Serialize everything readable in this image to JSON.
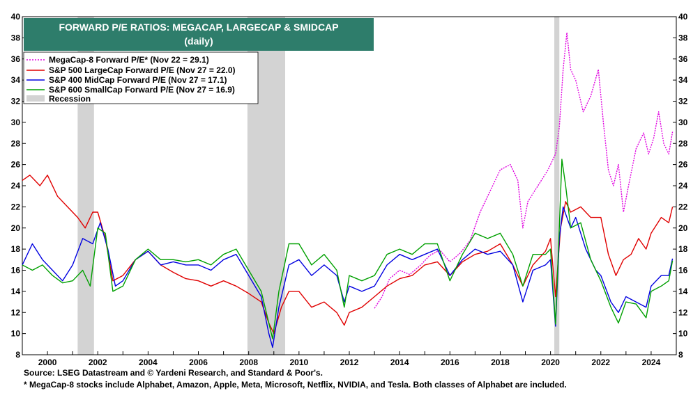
{
  "chart_data": {
    "type": "line",
    "title": "FORWARD P/E RATIOS: MEGACAP, LARGECAP & SMIDCAP",
    "subtitle": "(daily)",
    "xlabel": "",
    "ylabel": "",
    "xlim": [
      1999.0,
      2025.0
    ],
    "ylim": [
      8,
      40
    ],
    "y_ticks": [
      8,
      10,
      12,
      14,
      16,
      18,
      20,
      22,
      24,
      26,
      28,
      30,
      32,
      34,
      36,
      38,
      40
    ],
    "x_ticks": [
      2000,
      2002,
      2004,
      2006,
      2008,
      2010,
      2012,
      2014,
      2016,
      2018,
      2020,
      2022,
      2024
    ],
    "grid": false,
    "legend_placement": "top-left",
    "recessions": [
      [
        2001.2,
        2001.85
      ],
      [
        2007.95,
        2009.45
      ],
      [
        2020.15,
        2020.35
      ]
    ],
    "series": [
      {
        "name": "MegaCap-8 Forward P/E* (Nov 22 = 29.1)",
        "color": "#e000e0",
        "style": "dotted",
        "points": [
          [
            2013.0,
            12.4
          ],
          [
            2013.3,
            13.5
          ],
          [
            2013.6,
            15.2
          ],
          [
            2014.0,
            16.0
          ],
          [
            2014.4,
            15.6
          ],
          [
            2014.8,
            16.4
          ],
          [
            2015.2,
            17.4
          ],
          [
            2015.6,
            17.9
          ],
          [
            2016.0,
            16.8
          ],
          [
            2016.4,
            17.6
          ],
          [
            2016.8,
            18.8
          ],
          [
            2017.2,
            21.5
          ],
          [
            2017.6,
            23.5
          ],
          [
            2018.0,
            25.5
          ],
          [
            2018.4,
            26.0
          ],
          [
            2018.7,
            24.5
          ],
          [
            2018.9,
            20.0
          ],
          [
            2019.1,
            22.5
          ],
          [
            2019.5,
            24.0
          ],
          [
            2019.9,
            25.5
          ],
          [
            2020.2,
            27.0
          ],
          [
            2020.35,
            29.5
          ],
          [
            2020.5,
            35.0
          ],
          [
            2020.65,
            38.5
          ],
          [
            2020.8,
            35.0
          ],
          [
            2021.0,
            34.0
          ],
          [
            2021.3,
            31.0
          ],
          [
            2021.6,
            32.5
          ],
          [
            2021.9,
            35.0
          ],
          [
            2022.1,
            30.0
          ],
          [
            2022.3,
            25.5
          ],
          [
            2022.5,
            24.0
          ],
          [
            2022.7,
            26.0
          ],
          [
            2022.9,
            21.5
          ],
          [
            2023.1,
            24.0
          ],
          [
            2023.4,
            27.5
          ],
          [
            2023.7,
            29.0
          ],
          [
            2023.9,
            27.0
          ],
          [
            2024.1,
            28.5
          ],
          [
            2024.3,
            31.0
          ],
          [
            2024.5,
            28.0
          ],
          [
            2024.7,
            27.0
          ],
          [
            2024.85,
            29.1
          ]
        ]
      },
      {
        "name": "S&P 500 LargeCap Forward P/E (Nov 27 = 22.0)",
        "color": "#e00000",
        "style": "solid",
        "points": [
          [
            1999.0,
            24.5
          ],
          [
            1999.3,
            25.0
          ],
          [
            1999.7,
            24.0
          ],
          [
            2000.0,
            25.0
          ],
          [
            2000.4,
            23.0
          ],
          [
            2000.8,
            22.0
          ],
          [
            2001.2,
            21.0
          ],
          [
            2001.5,
            20.0
          ],
          [
            2001.8,
            21.5
          ],
          [
            2002.0,
            21.5
          ],
          [
            2002.3,
            19.0
          ],
          [
            2002.6,
            15.0
          ],
          [
            2003.0,
            15.5
          ],
          [
            2003.5,
            17.0
          ],
          [
            2004.0,
            17.8
          ],
          [
            2004.5,
            16.5
          ],
          [
            2005.0,
            15.8
          ],
          [
            2005.5,
            15.2
          ],
          [
            2006.0,
            15.0
          ],
          [
            2006.5,
            14.5
          ],
          [
            2007.0,
            15.0
          ],
          [
            2007.5,
            14.5
          ],
          [
            2008.0,
            13.8
          ],
          [
            2008.5,
            13.0
          ],
          [
            2008.8,
            11.0
          ],
          [
            2009.0,
            10.0
          ],
          [
            2009.3,
            12.5
          ],
          [
            2009.6,
            14.0
          ],
          [
            2010.0,
            14.0
          ],
          [
            2010.5,
            12.5
          ],
          [
            2011.0,
            13.0
          ],
          [
            2011.5,
            12.0
          ],
          [
            2011.8,
            10.8
          ],
          [
            2012.0,
            12.0
          ],
          [
            2012.5,
            12.5
          ],
          [
            2013.0,
            13.5
          ],
          [
            2013.5,
            14.5
          ],
          [
            2014.0,
            15.2
          ],
          [
            2014.5,
            15.5
          ],
          [
            2015.0,
            16.5
          ],
          [
            2015.5,
            16.8
          ],
          [
            2016.0,
            15.5
          ],
          [
            2016.5,
            16.8
          ],
          [
            2017.0,
            17.5
          ],
          [
            2017.5,
            17.8
          ],
          [
            2018.0,
            18.5
          ],
          [
            2018.5,
            16.5
          ],
          [
            2018.9,
            14.5
          ],
          [
            2019.3,
            16.5
          ],
          [
            2019.8,
            17.8
          ],
          [
            2020.0,
            19.0
          ],
          [
            2020.2,
            13.5
          ],
          [
            2020.4,
            20.0
          ],
          [
            2020.6,
            22.5
          ],
          [
            2020.8,
            21.5
          ],
          [
            2021.2,
            22.0
          ],
          [
            2021.6,
            21.0
          ],
          [
            2022.0,
            21.0
          ],
          [
            2022.3,
            17.5
          ],
          [
            2022.6,
            15.5
          ],
          [
            2022.9,
            17.0
          ],
          [
            2023.2,
            17.5
          ],
          [
            2023.5,
            19.0
          ],
          [
            2023.8,
            18.0
          ],
          [
            2024.0,
            19.5
          ],
          [
            2024.4,
            21.0
          ],
          [
            2024.7,
            20.5
          ],
          [
            2024.85,
            22.0
          ]
        ]
      },
      {
        "name": "S&P 400 MidCap Forward P/E (Nov 27 = 17.1)",
        "color": "#0000e0",
        "style": "solid",
        "points": [
          [
            1999.0,
            16.5
          ],
          [
            1999.4,
            18.5
          ],
          [
            1999.8,
            17.0
          ],
          [
            2000.2,
            16.0
          ],
          [
            2000.6,
            15.0
          ],
          [
            2001.0,
            16.5
          ],
          [
            2001.4,
            19.0
          ],
          [
            2001.8,
            18.5
          ],
          [
            2002.1,
            20.5
          ],
          [
            2002.4,
            18.0
          ],
          [
            2002.7,
            14.5
          ],
          [
            2003.0,
            15.0
          ],
          [
            2003.5,
            17.0
          ],
          [
            2004.0,
            17.8
          ],
          [
            2004.5,
            16.5
          ],
          [
            2005.0,
            16.8
          ],
          [
            2005.5,
            16.5
          ],
          [
            2006.0,
            16.5
          ],
          [
            2006.5,
            16.0
          ],
          [
            2007.0,
            17.0
          ],
          [
            2007.5,
            17.5
          ],
          [
            2008.0,
            15.5
          ],
          [
            2008.5,
            13.5
          ],
          [
            2008.8,
            10.0
          ],
          [
            2008.95,
            8.7
          ],
          [
            2009.2,
            12.5
          ],
          [
            2009.6,
            16.5
          ],
          [
            2010.0,
            17.0
          ],
          [
            2010.5,
            15.5
          ],
          [
            2011.0,
            16.5
          ],
          [
            2011.5,
            15.5
          ],
          [
            2011.8,
            13.0
          ],
          [
            2012.0,
            14.5
          ],
          [
            2012.5,
            14.0
          ],
          [
            2013.0,
            14.5
          ],
          [
            2013.5,
            16.5
          ],
          [
            2014.0,
            17.5
          ],
          [
            2014.5,
            17.0
          ],
          [
            2015.0,
            17.5
          ],
          [
            2015.5,
            18.0
          ],
          [
            2016.0,
            15.5
          ],
          [
            2016.5,
            17.0
          ],
          [
            2017.0,
            18.0
          ],
          [
            2017.5,
            17.5
          ],
          [
            2018.0,
            17.8
          ],
          [
            2018.5,
            16.5
          ],
          [
            2018.9,
            13.0
          ],
          [
            2019.3,
            16.0
          ],
          [
            2019.8,
            16.5
          ],
          [
            2020.0,
            17.0
          ],
          [
            2020.2,
            10.7
          ],
          [
            2020.35,
            19.0
          ],
          [
            2020.5,
            22.0
          ],
          [
            2020.8,
            20.0
          ],
          [
            2021.0,
            21.0
          ],
          [
            2021.4,
            18.0
          ],
          [
            2021.8,
            16.0
          ],
          [
            2022.0,
            15.5
          ],
          [
            2022.4,
            13.0
          ],
          [
            2022.7,
            12.0
          ],
          [
            2023.0,
            13.5
          ],
          [
            2023.4,
            13.0
          ],
          [
            2023.8,
            12.5
          ],
          [
            2024.0,
            14.5
          ],
          [
            2024.4,
            15.5
          ],
          [
            2024.7,
            15.5
          ],
          [
            2024.85,
            17.1
          ]
        ]
      },
      {
        "name": "S&P 600 SmallCap Forward P/E (Nov 27 = 16.9)",
        "color": "#00a000",
        "style": "solid",
        "points": [
          [
            1999.0,
            16.5
          ],
          [
            1999.4,
            16.0
          ],
          [
            1999.8,
            16.5
          ],
          [
            2000.2,
            15.5
          ],
          [
            2000.6,
            14.8
          ],
          [
            2001.0,
            15.0
          ],
          [
            2001.4,
            16.0
          ],
          [
            2001.7,
            14.5
          ],
          [
            2002.0,
            20.0
          ],
          [
            2002.3,
            19.5
          ],
          [
            2002.6,
            14.0
          ],
          [
            2003.0,
            14.5
          ],
          [
            2003.5,
            17.0
          ],
          [
            2004.0,
            18.0
          ],
          [
            2004.5,
            17.0
          ],
          [
            2005.0,
            17.0
          ],
          [
            2005.5,
            16.8
          ],
          [
            2006.0,
            17.0
          ],
          [
            2006.5,
            16.5
          ],
          [
            2007.0,
            17.5
          ],
          [
            2007.5,
            18.0
          ],
          [
            2008.0,
            16.0
          ],
          [
            2008.5,
            14.0
          ],
          [
            2008.8,
            11.0
          ],
          [
            2008.95,
            9.5
          ],
          [
            2009.2,
            14.0
          ],
          [
            2009.6,
            18.5
          ],
          [
            2010.0,
            18.5
          ],
          [
            2010.5,
            16.5
          ],
          [
            2011.0,
            17.5
          ],
          [
            2011.5,
            16.0
          ],
          [
            2011.8,
            12.5
          ],
          [
            2012.0,
            15.5
          ],
          [
            2012.5,
            15.0
          ],
          [
            2013.0,
            15.5
          ],
          [
            2013.5,
            17.5
          ],
          [
            2014.0,
            18.0
          ],
          [
            2014.5,
            17.5
          ],
          [
            2015.0,
            18.5
          ],
          [
            2015.5,
            18.5
          ],
          [
            2016.0,
            15.0
          ],
          [
            2016.5,
            17.5
          ],
          [
            2017.0,
            19.5
          ],
          [
            2017.5,
            19.0
          ],
          [
            2018.0,
            19.5
          ],
          [
            2018.5,
            17.5
          ],
          [
            2018.9,
            14.5
          ],
          [
            2019.3,
            17.5
          ],
          [
            2019.8,
            17.5
          ],
          [
            2020.0,
            18.0
          ],
          [
            2020.2,
            10.9
          ],
          [
            2020.35,
            20.0
          ],
          [
            2020.45,
            26.5
          ],
          [
            2020.6,
            24.0
          ],
          [
            2020.8,
            20.0
          ],
          [
            2021.2,
            20.5
          ],
          [
            2021.6,
            17.0
          ],
          [
            2022.0,
            15.0
          ],
          [
            2022.4,
            12.5
          ],
          [
            2022.7,
            11.0
          ],
          [
            2023.0,
            13.0
          ],
          [
            2023.4,
            12.8
          ],
          [
            2023.8,
            11.5
          ],
          [
            2024.0,
            14.0
          ],
          [
            2024.4,
            14.5
          ],
          [
            2024.7,
            15.0
          ],
          [
            2024.85,
            16.9
          ]
        ]
      }
    ],
    "recession_label": "Recession",
    "recession_color": "#d3d3d3"
  },
  "footnotes": {
    "source": "Source: LSEG Datastream and © Yardeni Research, and Standard & Poor's.",
    "note": "* MegaCap-8 stocks include Alphabet, Amazon, Apple, Meta, Microsoft, Netflix, NVIDIA, and Tesla. Both classes of Alphabet are included."
  },
  "colors": {
    "title_bg": "#2e7d6b",
    "title_text": "#ffffff"
  }
}
